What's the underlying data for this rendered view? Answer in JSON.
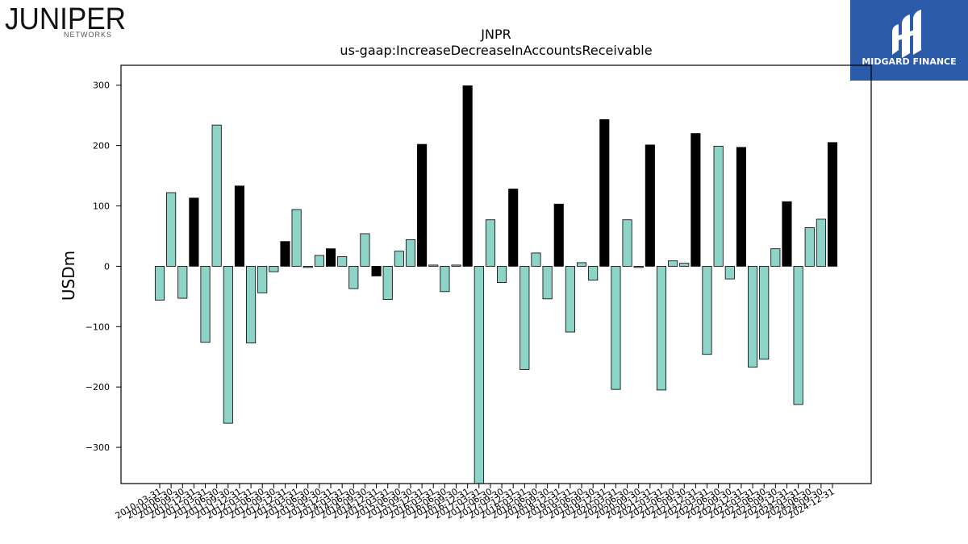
{
  "branding": {
    "left_logo": {
      "wordmark": "JUNIPER",
      "subtitle": "NETWORKS",
      "icon": "juniper-networks-logo"
    },
    "right_logo": {
      "text": "MIDGARD FINANCE",
      "icon": "midgard-finance-logo",
      "background": "#2a5aa8"
    }
  },
  "chart_data": {
    "type": "bar",
    "title": "JNPR",
    "subtitle": "us-gaap:IncreaseDecreaseInAccountsReceivable",
    "xlabel": "",
    "ylabel": "USDm",
    "ylim": [
      -360,
      333
    ],
    "yticks": [
      -300,
      -200,
      -100,
      0,
      100,
      200,
      300
    ],
    "grid": false,
    "legend": "none",
    "colors": {
      "quarterly": "#8dd3c7",
      "fiscal_year_end": "#000000",
      "edge": "#000000"
    },
    "categories": [
      "2010-03-31",
      "2010-06-30",
      "2010-09-30",
      "2010-12-31",
      "2011-03-31",
      "2011-06-30",
      "2011-09-30",
      "2011-12-31",
      "2012-03-31",
      "2012-06-30",
      "2012-09-30",
      "2012-12-31",
      "2013-03-31",
      "2013-06-30",
      "2013-09-30",
      "2013-12-31",
      "2014-03-31",
      "2014-06-30",
      "2014-09-30",
      "2014-12-31",
      "2015-03-31",
      "2015-06-30",
      "2015-09-30",
      "2015-12-31",
      "2016-03-31",
      "2016-06-30",
      "2016-09-30",
      "2016-12-31",
      "2017-03-31",
      "2017-06-30",
      "2017-09-30",
      "2017-12-31",
      "2018-03-31",
      "2018-06-30",
      "2018-09-30",
      "2018-12-31",
      "2019-03-31",
      "2019-06-30",
      "2019-09-30",
      "2019-12-31",
      "2020-03-31",
      "2020-06-30",
      "2020-09-30",
      "2020-12-31",
      "2021-03-31",
      "2021-06-30",
      "2021-09-30",
      "2021-12-31",
      "2022-03-31",
      "2022-06-30",
      "2022-09-30",
      "2022-12-31",
      "2023-03-31",
      "2023-06-30",
      "2023-09-30",
      "2023-12-31",
      "2024-03-31",
      "2024-06-30",
      "2024-09-30",
      "2024-12-31"
    ],
    "values": [
      -56,
      122,
      -53,
      113,
      -126,
      234,
      -260,
      133,
      -127,
      -44,
      -9,
      41,
      94,
      -2,
      18,
      29,
      16,
      -37,
      54,
      -16,
      -55,
      25,
      44,
      202,
      2,
      -42,
      2,
      299,
      -370,
      77,
      -27,
      128,
      -171,
      22,
      -54,
      103,
      -109,
      6,
      -23,
      243,
      -204,
      77,
      -2,
      201,
      -205,
      9,
      5,
      220,
      -146,
      199,
      -21,
      197,
      -167,
      -154,
      29,
      107,
      -229,
      64,
      78,
      205
    ],
    "fiscal_year_end": [
      false,
      false,
      false,
      true,
      false,
      false,
      false,
      true,
      false,
      false,
      false,
      true,
      false,
      false,
      false,
      true,
      false,
      false,
      false,
      true,
      false,
      false,
      false,
      true,
      false,
      false,
      false,
      true,
      false,
      false,
      false,
      true,
      false,
      false,
      false,
      true,
      false,
      false,
      false,
      true,
      false,
      false,
      false,
      true,
      false,
      false,
      false,
      true,
      false,
      false,
      false,
      true,
      false,
      false,
      false,
      true,
      false,
      false,
      false,
      true
    ]
  }
}
